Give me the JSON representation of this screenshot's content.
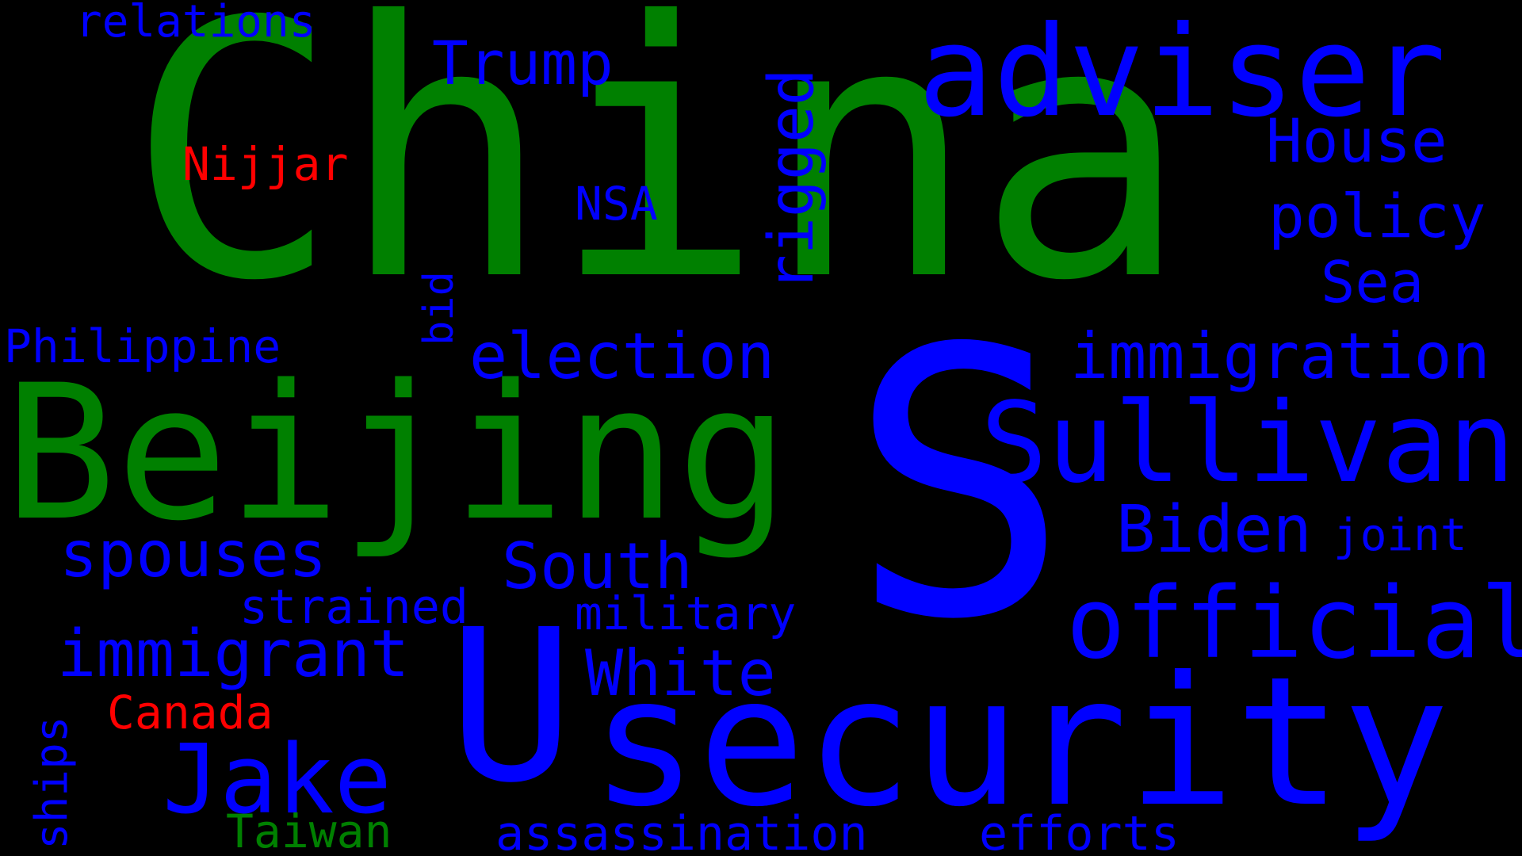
{
  "colors": {
    "background": "#000000",
    "green": "#008000",
    "blue": "#0000ff",
    "red": "#ff0000"
  },
  "words": [
    {
      "id": "china",
      "text": "China",
      "color": "green",
      "orientation": "horizontal"
    },
    {
      "id": "s",
      "text": "S",
      "color": "blue",
      "orientation": "horizontal"
    },
    {
      "id": "u",
      "text": "U",
      "color": "blue",
      "orientation": "horizontal"
    },
    {
      "id": "beijing",
      "text": "Beijing",
      "color": "green",
      "orientation": "horizontal"
    },
    {
      "id": "security",
      "text": "security",
      "color": "blue",
      "orientation": "horizontal"
    },
    {
      "id": "adviser",
      "text": "adviser",
      "color": "blue",
      "orientation": "horizontal"
    },
    {
      "id": "sullivan",
      "text": "Sullivan",
      "color": "blue",
      "orientation": "horizontal"
    },
    {
      "id": "official",
      "text": "official",
      "color": "blue",
      "orientation": "horizontal"
    },
    {
      "id": "jake",
      "text": "Jake",
      "color": "blue",
      "orientation": "horizontal"
    },
    {
      "id": "immigration",
      "text": "immigration",
      "color": "blue",
      "orientation": "horizontal"
    },
    {
      "id": "election",
      "text": "election",
      "color": "blue",
      "orientation": "horizontal"
    },
    {
      "id": "immigrant",
      "text": "immigrant",
      "color": "blue",
      "orientation": "horizontal"
    },
    {
      "id": "biden",
      "text": "Biden",
      "color": "blue",
      "orientation": "horizontal"
    },
    {
      "id": "spouses",
      "text": "spouses",
      "color": "blue",
      "orientation": "horizontal"
    },
    {
      "id": "white",
      "text": "White",
      "color": "blue",
      "orientation": "horizontal"
    },
    {
      "id": "south",
      "text": "South",
      "color": "blue",
      "orientation": "horizontal"
    },
    {
      "id": "house",
      "text": "House",
      "color": "blue",
      "orientation": "horizontal"
    },
    {
      "id": "policy",
      "text": "policy",
      "color": "blue",
      "orientation": "horizontal"
    },
    {
      "id": "trump",
      "text": "Trump",
      "color": "blue",
      "orientation": "horizontal"
    },
    {
      "id": "rigged",
      "text": "rigged",
      "color": "blue",
      "orientation": "vertical"
    },
    {
      "id": "sea",
      "text": "Sea",
      "color": "blue",
      "orientation": "horizontal"
    },
    {
      "id": "efforts",
      "text": "efforts",
      "color": "blue",
      "orientation": "horizontal"
    },
    {
      "id": "assassination",
      "text": "assassination",
      "color": "blue",
      "orientation": "horizontal"
    },
    {
      "id": "philippine",
      "text": "Philippine",
      "color": "blue",
      "orientation": "horizontal"
    },
    {
      "id": "military",
      "text": "military",
      "color": "blue",
      "orientation": "horizontal"
    },
    {
      "id": "strained",
      "text": "strained",
      "color": "blue",
      "orientation": "horizontal"
    },
    {
      "id": "relations",
      "text": "relations",
      "color": "blue",
      "orientation": "horizontal"
    },
    {
      "id": "joint",
      "text": "joint",
      "color": "blue",
      "orientation": "horizontal"
    },
    {
      "id": "nsa",
      "text": "NSA",
      "color": "blue",
      "orientation": "horizontal"
    },
    {
      "id": "nijjar",
      "text": "Nijjar",
      "color": "red",
      "orientation": "horizontal"
    },
    {
      "id": "canada",
      "text": "Canada",
      "color": "red",
      "orientation": "horizontal"
    },
    {
      "id": "taiwan",
      "text": "Taiwan",
      "color": "green",
      "orientation": "horizontal"
    },
    {
      "id": "bid",
      "text": "bid",
      "color": "blue",
      "orientation": "vertical"
    },
    {
      "id": "ships",
      "text": "ships",
      "color": "blue",
      "orientation": "vertical"
    }
  ]
}
